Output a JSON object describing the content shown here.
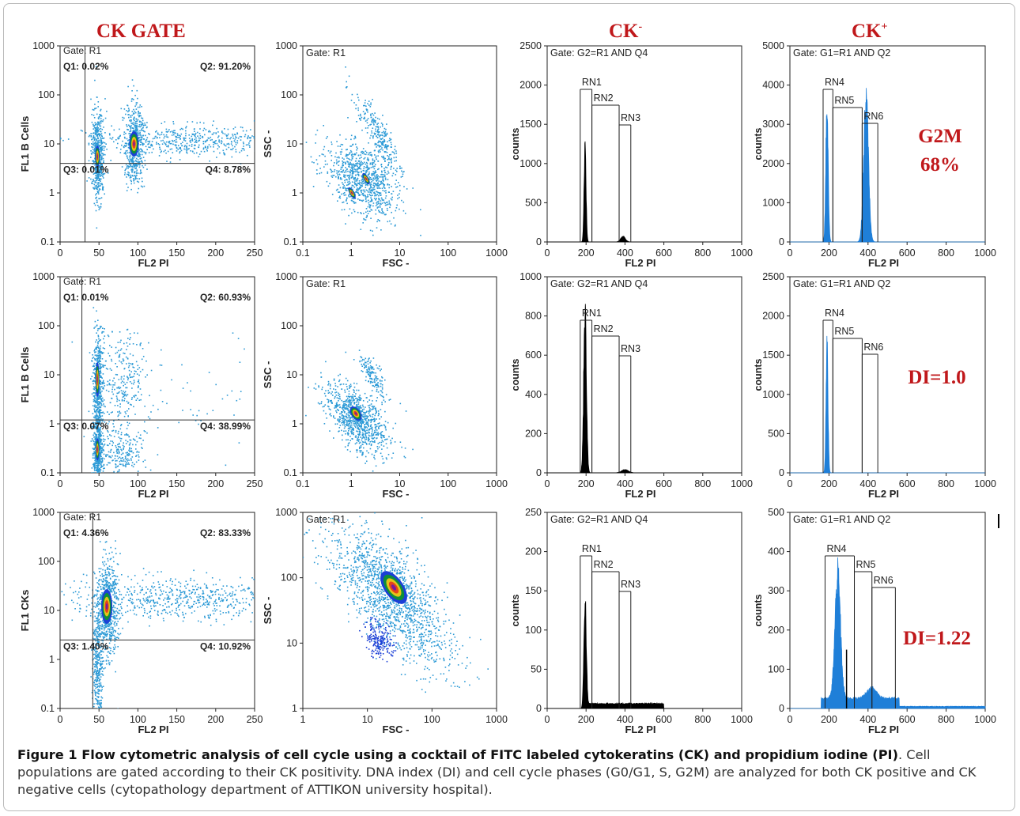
{
  "headers": {
    "ck_gate": "CK GATE",
    "ck_neg": "CK",
    "ck_neg_sup": "-",
    "ck_pos": "CK",
    "ck_pos_sup": "+"
  },
  "colors": {
    "red": "#c0181b",
    "blue": "#1f7fd8",
    "scatter_blue": "#2c9ad6"
  },
  "rows": [
    {
      "dot_plot": {
        "gate": "Gate: R1",
        "y_label": "FL1  B Cells",
        "x_label": "FL2  PI",
        "q1": "Q1: 0.02%",
        "q2": "Q2: 91.20%",
        "q3": "Q3: 0.01%",
        "q4": "Q4: 8.78%",
        "x_ticks": [
          "0",
          "50",
          "100",
          "150",
          "200",
          "250"
        ],
        "y_ticks": [
          "1000",
          "100",
          "10",
          "1",
          "0.1"
        ]
      },
      "scatter": {
        "gate": "Gate: R1",
        "x_label": "FSC  -",
        "y_label": "SSC  -",
        "x_ticks": [
          "0.1",
          "1",
          "10",
          "100",
          "1000"
        ],
        "y_ticks": [
          "1000",
          "100",
          "10",
          "1",
          "0.1"
        ]
      },
      "hist_neg": {
        "gate": "Gate: G2=R1 AND Q4",
        "y_label": "counts",
        "x_label": "FL2  PI",
        "y_ticks": [
          "2500",
          "2000",
          "1500",
          "1000",
          "500",
          "0"
        ],
        "x_ticks": [
          "0",
          "200",
          "400",
          "600",
          "800",
          "1000"
        ],
        "markers": [
          "RN1",
          "RN2",
          "RN3"
        ]
      },
      "hist_pos": {
        "gate": "Gate: G1=R1 AND Q2",
        "y_label": "counts",
        "x_label": "FL2  PI",
        "y_ticks": [
          "5000",
          "4000",
          "3000",
          "2000",
          "1000",
          "0"
        ],
        "x_ticks": [
          "0",
          "200",
          "400",
          "600",
          "800",
          "1000"
        ],
        "markers": [
          "RN4",
          "RN5",
          "RN6"
        ],
        "note_lines": [
          "G2M",
          "68%"
        ]
      }
    },
    {
      "dot_plot": {
        "gate": "Gate: R1",
        "y_label": "FL1  B Cells",
        "x_label": "FL2  PI",
        "q1": "Q1: 0.01%",
        "q2": "Q2: 60.93%",
        "q3": "Q3: 0.07%",
        "q4": "Q4: 38.99%",
        "x_ticks": [
          "0",
          "50",
          "100",
          "150",
          "200",
          "250"
        ],
        "y_ticks": [
          "1000",
          "100",
          "10",
          "1",
          "0.1"
        ]
      },
      "scatter": {
        "gate": "Gate: R1",
        "x_label": "FSC  -",
        "y_label": "SSC  -",
        "x_ticks": [
          "0.1",
          "1",
          "10",
          "100",
          "1000"
        ],
        "y_ticks": [
          "1000",
          "100",
          "10",
          "1",
          "0.1"
        ]
      },
      "hist_neg": {
        "gate": "Gate: G2=R1 AND Q4",
        "y_label": "counts",
        "x_label": "FL2  PI",
        "y_ticks": [
          "1000",
          "800",
          "600",
          "400",
          "200",
          "0"
        ],
        "x_ticks": [
          "0",
          "200",
          "400",
          "600",
          "800",
          "1000"
        ],
        "markers": [
          "RN1",
          "RN2",
          "RN3"
        ]
      },
      "hist_pos": {
        "gate": "Gate: G1=R1 AND Q2",
        "y_label": "counts",
        "x_label": "FL2  PI",
        "y_ticks": [
          "2500",
          "2000",
          "1500",
          "1000",
          "500",
          "0"
        ],
        "x_ticks": [
          "0",
          "200",
          "400",
          "600",
          "800",
          "1000"
        ],
        "markers": [
          "RN4",
          "RN5",
          "RN6"
        ],
        "note_lines": [
          "DI=1.0"
        ]
      }
    },
    {
      "dot_plot": {
        "gate": "Gate: R1",
        "y_label": "FL1  CKs",
        "x_label": "FL2  PI",
        "q1": "Q1: 4.36%",
        "q2": "Q2: 83.33%",
        "q3": "Q3: 1.40%",
        "q4": "Q4: 10.92%",
        "x_ticks": [
          "0",
          "50",
          "100",
          "150",
          "200",
          "250"
        ],
        "y_ticks": [
          "1000",
          "100",
          "10",
          "1",
          "0.1"
        ]
      },
      "scatter": {
        "gate": "Gate: R1",
        "x_label": "FSC  -",
        "y_label": "SSC  -",
        "x_ticks": [
          "1",
          "10",
          "100",
          "1000"
        ],
        "y_ticks": [
          "1000",
          "100",
          "10",
          "1"
        ]
      },
      "hist_neg": {
        "gate": "Gate: G2=R1 AND Q4",
        "y_label": "counts",
        "x_label": "FL2  PI",
        "y_ticks": [
          "250",
          "200",
          "150",
          "100",
          "50",
          "0"
        ],
        "x_ticks": [
          "0",
          "200",
          "400",
          "600",
          "800",
          "1000"
        ],
        "markers": [
          "RN1",
          "RN2",
          "RN3"
        ]
      },
      "hist_pos": {
        "gate": "Gate: G1=R1 AND Q2",
        "y_label": "counts",
        "x_label": "FL2  PI",
        "y_ticks": [
          "500",
          "400",
          "300",
          "200",
          "100",
          "0"
        ],
        "x_ticks": [
          "0",
          "200",
          "400",
          "600",
          "800",
          "1000"
        ],
        "markers": [
          "RN4",
          "RN5",
          "RN6"
        ],
        "note_lines": [
          "DI=1.22"
        ]
      }
    }
  ],
  "caption": {
    "title": "Figure 1 Flow cytometric analysis of cell cycle using a cocktail of FITC labeled cytokeratins (CK) and propidium iodine (PI)",
    "text": ". Cell populations are gated according to their CK positivity. DNA index (DI) and cell cycle phases (G0/G1, S, G2M) are analyzed for both CK positive and CK negative cells (cytopathology department of ATTIKON university hospital)."
  },
  "chart_data": [
    {
      "type": "scatter",
      "title": "",
      "xlabel": "FL2  PI",
      "ylabel": "FL1  B Cells",
      "xlim": [
        0,
        250
      ],
      "ylim": [
        0.1,
        1000
      ],
      "y_scale": "log",
      "quadrants": {
        "Q1": "0.02%",
        "Q2": "91.20%",
        "Q3": "0.01%",
        "Q4": "8.78%"
      },
      "populations": [
        {
          "x": 48,
          "y": 5
        },
        {
          "x": 95,
          "y": 10
        }
      ]
    },
    {
      "type": "scatter",
      "xlabel": "FSC  -",
      "ylabel": "SSC  -",
      "xlim": [
        0.1,
        1000
      ],
      "ylim": [
        0.1,
        1000
      ],
      "scale": "log",
      "populations": [
        {
          "x": 0.9,
          "y": 1
        },
        {
          "x": 1.8,
          "y": 2
        }
      ]
    },
    {
      "type": "bar",
      "xlabel": "FL2  PI",
      "ylabel": "counts",
      "xlim": [
        0,
        1000
      ],
      "ylim": [
        0,
        2500
      ],
      "peaks": [
        {
          "x": 195,
          "y": 1200
        },
        {
          "x": 390,
          "y": 70
        }
      ]
    },
    {
      "type": "bar",
      "xlabel": "FL2  PI",
      "ylabel": "counts",
      "xlim": [
        0,
        1000
      ],
      "ylim": [
        0,
        5000
      ],
      "peaks": [
        {
          "x": 190,
          "y": 3400
        },
        {
          "x": 390,
          "y": 3600
        }
      ]
    },
    {
      "type": "scatter",
      "xlabel": "FL2  PI",
      "ylabel": "FL1  B Cells",
      "xlim": [
        0,
        250
      ],
      "ylim": [
        0.1,
        1000
      ],
      "y_scale": "log",
      "quadrants": {
        "Q1": "0.01%",
        "Q2": "60.93%",
        "Q3": "0.07%",
        "Q4": "38.99%"
      },
      "populations": [
        {
          "x": 48,
          "y": 6
        },
        {
          "x": 48,
          "y": 0.25
        }
      ]
    },
    {
      "type": "scatter",
      "xlabel": "FSC  -",
      "ylabel": "SSC  -",
      "xlim": [
        0.1,
        1000
      ],
      "ylim": [
        0.1,
        1000
      ],
      "scale": "log",
      "populations": [
        {
          "x": 1.1,
          "y": 1.5
        }
      ]
    },
    {
      "type": "bar",
      "xlabel": "FL2  PI",
      "ylabel": "counts",
      "xlim": [
        0,
        1000
      ],
      "ylim": [
        0,
        1000
      ],
      "peaks": [
        {
          "x": 195,
          "y": 800
        },
        {
          "x": 400,
          "y": 15
        }
      ]
    },
    {
      "type": "bar",
      "xlabel": "FL2  PI",
      "ylabel": "counts",
      "xlim": [
        0,
        1000
      ],
      "ylim": [
        0,
        2500
      ],
      "peaks": [
        {
          "x": 190,
          "y": 1600
        }
      ]
    },
    {
      "type": "scatter",
      "xlabel": "FL2  PI",
      "ylabel": "FL1  CKs",
      "xlim": [
        0,
        250
      ],
      "ylim": [
        0.1,
        1000
      ],
      "y_scale": "log",
      "quadrants": {
        "Q1": "4.36%",
        "Q2": "83.33%",
        "Q3": "1.40%",
        "Q4": "10.92%"
      },
      "populations": [
        {
          "x": 60,
          "y": 12
        }
      ]
    },
    {
      "type": "scatter",
      "xlabel": "FSC  -",
      "ylabel": "SSC  -",
      "xlim": [
        1,
        1000
      ],
      "ylim": [
        1,
        1000
      ],
      "scale": "log",
      "populations": [
        {
          "x": 25,
          "y": 60
        }
      ]
    },
    {
      "type": "bar",
      "xlabel": "FL2  PI",
      "ylabel": "counts",
      "xlim": [
        0,
        1000
      ],
      "ylim": [
        0,
        250
      ],
      "peaks": [
        {
          "x": 195,
          "y": 140
        }
      ]
    },
    {
      "type": "bar",
      "xlabel": "FL2  PI",
      "ylabel": "counts",
      "xlim": [
        0,
        1000
      ],
      "ylim": [
        0,
        500
      ],
      "peaks": [
        {
          "x": 245,
          "y": 310
        },
        {
          "x": 420,
          "y": 25
        }
      ]
    }
  ]
}
